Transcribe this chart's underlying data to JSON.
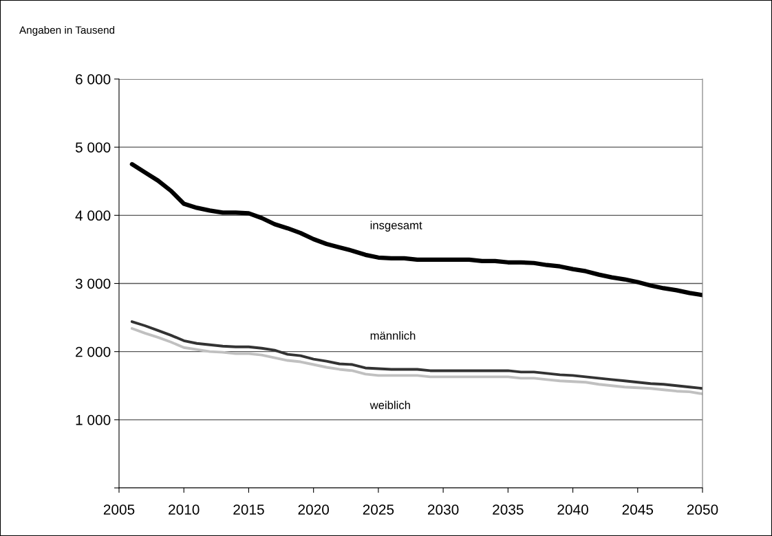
{
  "chart_data": {
    "type": "line",
    "ylabel": "Angaben in Tausend",
    "x": [
      2006,
      2007,
      2008,
      2009,
      2010,
      2011,
      2012,
      2013,
      2014,
      2015,
      2016,
      2017,
      2018,
      2019,
      2020,
      2021,
      2022,
      2023,
      2024,
      2025,
      2026,
      2027,
      2028,
      2029,
      2030,
      2031,
      2032,
      2033,
      2034,
      2035,
      2036,
      2037,
      2038,
      2039,
      2040,
      2041,
      2042,
      2043,
      2044,
      2045,
      2046,
      2047,
      2048,
      2049,
      2050
    ],
    "series": [
      {
        "name": "insgesamt",
        "color": "#000000",
        "values": [
          4750,
          4630,
          4510,
          4360,
          4170,
          4110,
          4070,
          4040,
          4040,
          4030,
          3960,
          3870,
          3810,
          3740,
          3650,
          3580,
          3530,
          3480,
          3420,
          3380,
          3370,
          3370,
          3350,
          3350,
          3350,
          3350,
          3350,
          3330,
          3330,
          3310,
          3310,
          3300,
          3270,
          3250,
          3210,
          3180,
          3130,
          3090,
          3060,
          3020,
          2970,
          2930,
          2900,
          2860,
          2830
        ]
      },
      {
        "name": "männlich",
        "color": "#333333",
        "values": [
          2440,
          2380,
          2310,
          2240,
          2160,
          2120,
          2100,
          2080,
          2070,
          2070,
          2050,
          2020,
          1960,
          1940,
          1890,
          1860,
          1820,
          1810,
          1760,
          1750,
          1740,
          1740,
          1740,
          1720,
          1720,
          1720,
          1720,
          1720,
          1720,
          1720,
          1700,
          1700,
          1680,
          1660,
          1650,
          1630,
          1610,
          1590,
          1570,
          1550,
          1530,
          1520,
          1500,
          1480,
          1460
        ]
      },
      {
        "name": "weiblich",
        "color": "#c0c0c0",
        "values": [
          2340,
          2270,
          2210,
          2140,
          2060,
          2030,
          2000,
          1990,
          1970,
          1970,
          1950,
          1910,
          1870,
          1850,
          1810,
          1770,
          1740,
          1720,
          1670,
          1650,
          1650,
          1650,
          1650,
          1630,
          1630,
          1630,
          1630,
          1630,
          1630,
          1630,
          1610,
          1610,
          1590,
          1570,
          1560,
          1550,
          1520,
          1500,
          1480,
          1470,
          1460,
          1440,
          1420,
          1410,
          1380
        ]
      }
    ],
    "xlim": [
      2005,
      2050
    ],
    "xticks": [
      2005,
      2010,
      2015,
      2020,
      2025,
      2030,
      2035,
      2040,
      2045,
      2050
    ],
    "ylim": [
      0,
      6000
    ],
    "yticks": [
      {
        "value": 0,
        "label": null
      },
      {
        "value": 1000,
        "label": "1 000"
      },
      {
        "value": 2000,
        "label": "2 000"
      },
      {
        "value": 3000,
        "label": "3 000"
      },
      {
        "value": 4000,
        "label": "4 000"
      },
      {
        "value": 5000,
        "label": "5 000"
      },
      {
        "value": 6000,
        "label": "6 000"
      }
    ],
    "grid": "y",
    "legend": false,
    "line_style": "solid",
    "marker": "none"
  }
}
